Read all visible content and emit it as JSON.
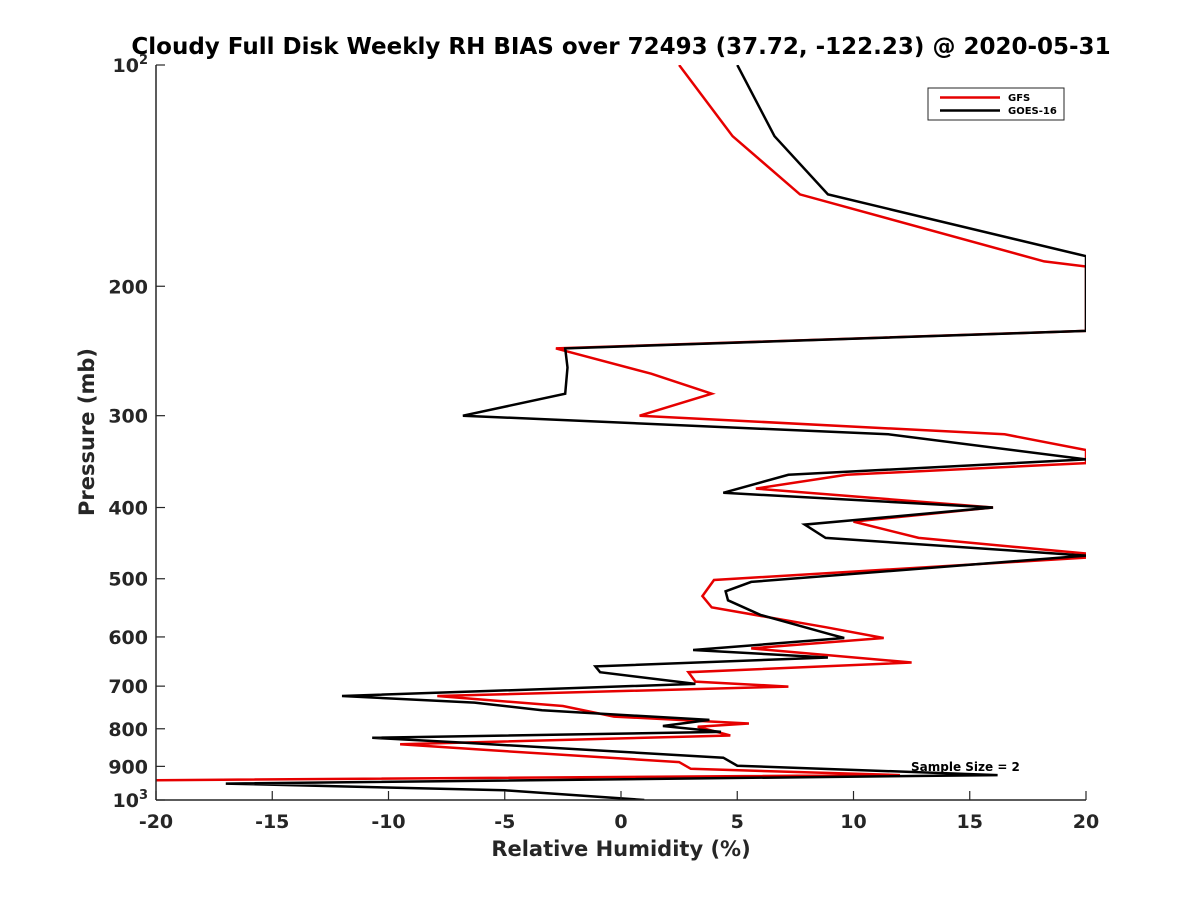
{
  "chart_data": {
    "type": "line",
    "title": "Cloudy Full Disk Weekly RH BIAS over 72493 (37.72, -122.23) @ 2020-05-31",
    "xlabel": "Relative Humidity (%)",
    "ylabel": "Pressure (mb)",
    "xlim": [
      -20,
      20
    ],
    "ylim": [
      100,
      1000
    ],
    "y_scale": "log",
    "y_reversed": true,
    "x_ticks": [
      "-20",
      "-15",
      "-10",
      "-5",
      "0",
      "5",
      "10",
      "15",
      "20"
    ],
    "y_ticks": [
      {
        "value": 100,
        "base": "10",
        "exp": "2"
      },
      {
        "value": 200,
        "label": "200"
      },
      {
        "value": 300,
        "label": "300"
      },
      {
        "value": 400,
        "label": "400"
      },
      {
        "value": 500,
        "label": "500"
      },
      {
        "value": 600,
        "label": "600"
      },
      {
        "value": 700,
        "label": "700"
      },
      {
        "value": 800,
        "label": "800"
      },
      {
        "value": 900,
        "label": "900"
      },
      {
        "value": 1000,
        "base": "10",
        "exp": "3"
      }
    ],
    "legend_position": "top-right",
    "grid": false,
    "annotation": "Sample Size = 2",
    "series": [
      {
        "name": "GFS",
        "color": "#e60000",
        "points": [
          [
            2.5,
            100
          ],
          [
            4.8,
            125
          ],
          [
            7.7,
            150
          ],
          [
            18.2,
            185
          ],
          [
            20.0,
            188
          ],
          [
            20.0,
            230
          ],
          [
            -2.8,
            243
          ],
          [
            1.3,
            263
          ],
          [
            3.9,
            280
          ],
          [
            0.8,
            300
          ],
          [
            16.5,
            318
          ],
          [
            20.0,
            334
          ],
          [
            20.0,
            348
          ],
          [
            9.7,
            361
          ],
          [
            5.8,
            377
          ],
          [
            16.0,
            400
          ],
          [
            10.0,
            418
          ],
          [
            12.8,
            440
          ],
          [
            20.0,
            462
          ],
          [
            20.0,
            468
          ],
          [
            4.0,
            502
          ],
          [
            3.5,
            528
          ],
          [
            3.9,
            547
          ],
          [
            8.8,
            582
          ],
          [
            11.3,
            602
          ],
          [
            5.6,
            622
          ],
          [
            12.5,
            650
          ],
          [
            2.9,
            670
          ],
          [
            3.2,
            690
          ],
          [
            7.2,
            701
          ],
          [
            -7.9,
            722
          ],
          [
            -2.5,
            745
          ],
          [
            -0.3,
            770
          ],
          [
            5.5,
            787
          ],
          [
            3.3,
            795
          ],
          [
            4.7,
            817
          ],
          [
            -9.5,
            840
          ],
          [
            -5.5,
            856
          ],
          [
            2.5,
            888
          ],
          [
            3.0,
            907
          ],
          [
            12.0,
            925
          ],
          [
            -20.0,
            940
          ]
        ]
      },
      {
        "name": "GOES-16",
        "color": "#000000",
        "points": [
          [
            5.0,
            100
          ],
          [
            6.6,
            125
          ],
          [
            8.9,
            150
          ],
          [
            20.0,
            182
          ],
          [
            20.0,
            230
          ],
          [
            -2.4,
            243
          ],
          [
            -2.3,
            258
          ],
          [
            -2.4,
            280
          ],
          [
            -6.8,
            300
          ],
          [
            11.5,
            318
          ],
          [
            20.0,
            344
          ],
          [
            7.2,
            361
          ],
          [
            4.4,
            382
          ],
          [
            16.0,
            400
          ],
          [
            7.9,
            422
          ],
          [
            8.8,
            440
          ],
          [
            20.0,
            465
          ],
          [
            5.6,
            505
          ],
          [
            4.5,
            520
          ],
          [
            4.6,
            535
          ],
          [
            6.0,
            560
          ],
          [
            9.0,
            595
          ],
          [
            9.6,
            602
          ],
          [
            3.1,
            625
          ],
          [
            8.9,
            640
          ],
          [
            -1.1,
            658
          ],
          [
            -0.9,
            670
          ],
          [
            3.2,
            695
          ],
          [
            -12.0,
            722
          ],
          [
            -6.3,
            737
          ],
          [
            -3.4,
            755
          ],
          [
            3.8,
            778
          ],
          [
            1.8,
            793
          ],
          [
            4.3,
            808
          ],
          [
            -10.7,
            823
          ],
          [
            -6.7,
            836
          ],
          [
            4.4,
            876
          ],
          [
            5.0,
            898
          ],
          [
            16.2,
            925
          ],
          [
            -17.0,
            950
          ],
          [
            -5.0,
            970
          ],
          [
            1.0,
            1000
          ]
        ]
      }
    ]
  }
}
